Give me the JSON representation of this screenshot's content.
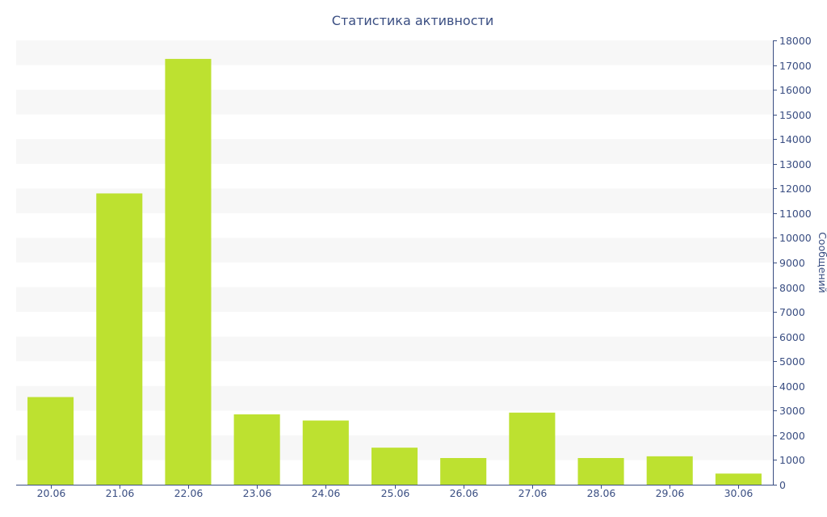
{
  "chart_data": {
    "type": "bar",
    "title": "Статистика активности",
    "xlabel": "",
    "ylabel": "Сообщений",
    "categories": [
      "20.06",
      "21.06",
      "22.06",
      "23.06",
      "24.06",
      "25.06",
      "26.06",
      "27.06",
      "28.06",
      "29.06",
      "30.06"
    ],
    "values": [
      3550,
      11800,
      17250,
      2850,
      2600,
      1500,
      1080,
      2920,
      1080,
      1150,
      450
    ],
    "ylim": [
      0,
      18000
    ],
    "yticks": [
      "0",
      "1000",
      "2000",
      "3000",
      "4000",
      "5000",
      "6000",
      "7000",
      "8000",
      "9000",
      "10000",
      "11000",
      "12000",
      "13000",
      "14000",
      "15000",
      "16000",
      "17000",
      "18000"
    ],
    "y_axis_position": "right",
    "grid": "alternating horizontal bands",
    "legend": "none"
  },
  "colors": {
    "bar": "#bde130",
    "band": "#f7f7f7",
    "axis": "#3a4e82",
    "text": "#3a4e82",
    "background": "#ffffff"
  }
}
